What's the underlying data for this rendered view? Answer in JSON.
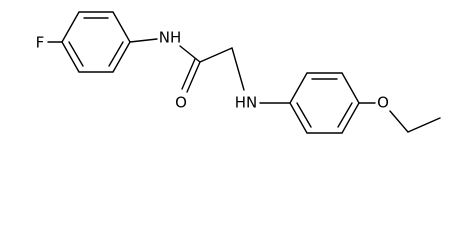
{
  "atoms": {
    "fluorine": "F",
    "amide_nh": "NH",
    "carbonyl_o": "O",
    "amine_nh": "HN",
    "ether_o": "O"
  }
}
